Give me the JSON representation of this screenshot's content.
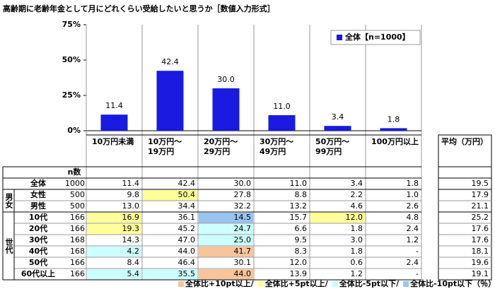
{
  "title": "高齢期に老齢年金として月にどれくらい受給したいと思うか［数値入力形式］",
  "chart_data": {
    "type": "bar",
    "categories": [
      "10万円未満",
      "10万円～\n19万円",
      "20万円～\n29万円",
      "30万円～\n49万円",
      "50万円～\n99万円",
      "100万円以上"
    ],
    "series": [
      {
        "name": "全体【n=1000】",
        "color": "#1a1ae0",
        "values": [
          11.4,
          42.4,
          30.0,
          11.0,
          3.4,
          1.8
        ],
        "value_labels": [
          "11.4",
          "42.4",
          "30.0",
          "11.0",
          "3.4",
          "1.8"
        ]
      }
    ],
    "ylim": [
      0,
      75
    ],
    "yticks": [
      {
        "value": 0,
        "label": "0%"
      },
      {
        "value": 25,
        "label": "25%"
      },
      {
        "value": 50,
        "label": "50%"
      },
      {
        "value": 75,
        "label": "75%"
      }
    ],
    "legend": "upper right"
  },
  "table": {
    "n_header": "n数",
    "average_header": "平均（万円）",
    "sections": [
      {
        "rows": [
          {
            "label": "全体",
            "n": "1000",
            "values": [
              "11.4",
              "42.4",
              "30.0",
              "11.0",
              "3.4",
              "1.8"
            ],
            "average": "19.5",
            "highlight": [
              null,
              null,
              null,
              null,
              null,
              null
            ]
          }
        ]
      },
      {
        "group": "男女",
        "rows": [
          {
            "label": "女性",
            "n": "500",
            "values": [
              "9.8",
              "50.4",
              "27.8",
              "8.8",
              "2.2",
              "1.0"
            ],
            "average": "17.9",
            "highlight": [
              null,
              1,
              null,
              null,
              null,
              null
            ]
          },
          {
            "label": "男性",
            "n": "500",
            "values": [
              "13.0",
              "34.4",
              "32.2",
              "13.2",
              "4.6",
              "2.6"
            ],
            "average": "21.1",
            "highlight": [
              null,
              null,
              null,
              null,
              null,
              null
            ]
          }
        ]
      },
      {
        "group": "世代",
        "rows": [
          {
            "label": "10代",
            "n": "166",
            "values": [
              "16.9",
              "36.1",
              "14.5",
              "15.7",
              "12.0",
              "4.8"
            ],
            "average": "25.2",
            "highlight": [
              1,
              null,
              3,
              null,
              1,
              null
            ]
          },
          {
            "label": "20代",
            "n": "166",
            "values": [
              "19.3",
              "45.2",
              "24.7",
              "6.6",
              "1.8",
              "2.4"
            ],
            "average": "17.6",
            "highlight": [
              1,
              null,
              2,
              null,
              null,
              null
            ]
          },
          {
            "label": "30代",
            "n": "168",
            "values": [
              "14.3",
              "47.0",
              "25.0",
              "9.5",
              "3.0",
              "1.2"
            ],
            "average": "17.6",
            "highlight": [
              null,
              null,
              2,
              null,
              null,
              null
            ]
          },
          {
            "label": "40代",
            "n": "168",
            "values": [
              "4.2",
              "44.0",
              "41.7",
              "8.3",
              "1.8",
              "-"
            ],
            "average": "18.1",
            "highlight": [
              2,
              null,
              0,
              null,
              null,
              null
            ]
          },
          {
            "label": "50代",
            "n": "166",
            "values": [
              "8.4",
              "46.4",
              "30.1",
              "12.0",
              "0.6",
              "2.4"
            ],
            "average": "19.6",
            "highlight": [
              null,
              null,
              null,
              null,
              null,
              null
            ]
          },
          {
            "label": "60代以上",
            "n": "166",
            "values": [
              "5.4",
              "35.5",
              "44.0",
              "13.9",
              "1.2",
              "-"
            ],
            "average": "19.1",
            "highlight": [
              2,
              2,
              0,
              null,
              null,
              null
            ]
          }
        ]
      }
    ],
    "highlight_legend": [
      {
        "label": "全体比+10pt以上/",
        "color": "#f8c49c"
      },
      {
        "label": "全体比+5pt以上/",
        "color": "#ffff99"
      },
      {
        "label": "全体比-5pt以下/",
        "color": "#ccffff"
      },
      {
        "label": "全体比-10pt以下（％）",
        "color": "#99c4f0"
      }
    ]
  }
}
